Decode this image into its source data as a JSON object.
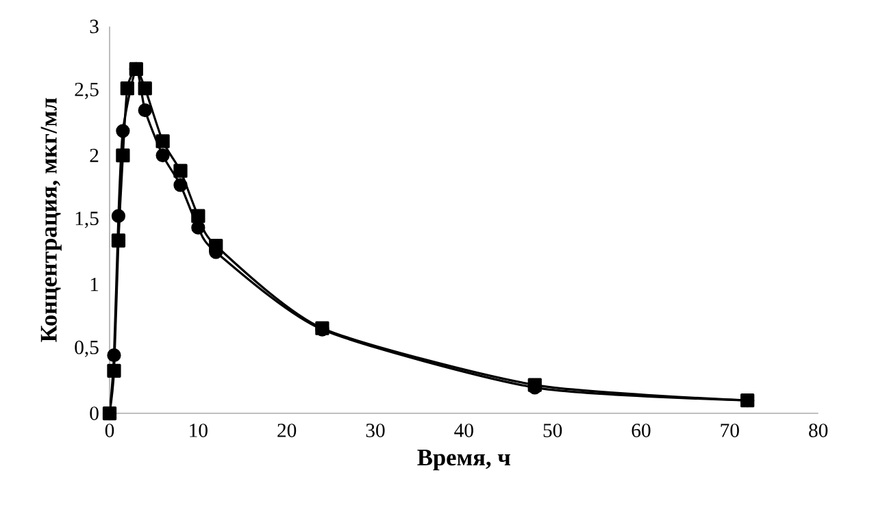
{
  "chart_data": {
    "type": "line",
    "xlabel": "Время, ч",
    "ylabel": "Концентрация, мкг/мл",
    "series": [
      {
        "color": "#000000",
        "marker": "circle",
        "x": [
          0,
          0.5,
          1,
          1.5,
          3,
          4,
          6,
          8,
          10,
          12,
          24,
          48,
          72
        ],
        "values": [
          0,
          0.45,
          1.53,
          2.19,
          2.67,
          2.35,
          2.0,
          1.77,
          1.44,
          1.25,
          0.65,
          0.2,
          0.1
        ]
      },
      {
        "color": "#000000",
        "marker": "square",
        "x": [
          0,
          0.5,
          1,
          1.5,
          2,
          3,
          4,
          6,
          8,
          10,
          12,
          24,
          48,
          72
        ],
        "values": [
          0,
          0.33,
          1.34,
          2.0,
          2.52,
          2.67,
          2.52,
          2.11,
          1.88,
          1.53,
          1.3,
          0.66,
          0.22,
          0.1
        ]
      }
    ],
    "xlim": [
      0,
      80
    ],
    "xticks": [
      0,
      10,
      20,
      30,
      40,
      50,
      60,
      70,
      80
    ],
    "ylim": [
      0,
      3
    ],
    "yticks": [
      0,
      {
        "value": 0.5,
        "label": "0,5"
      },
      1,
      {
        "value": 1.5,
        "label": "1,5"
      },
      2,
      {
        "value": 2.5,
        "label": "2,5"
      },
      3
    ],
    "grid": false
  }
}
